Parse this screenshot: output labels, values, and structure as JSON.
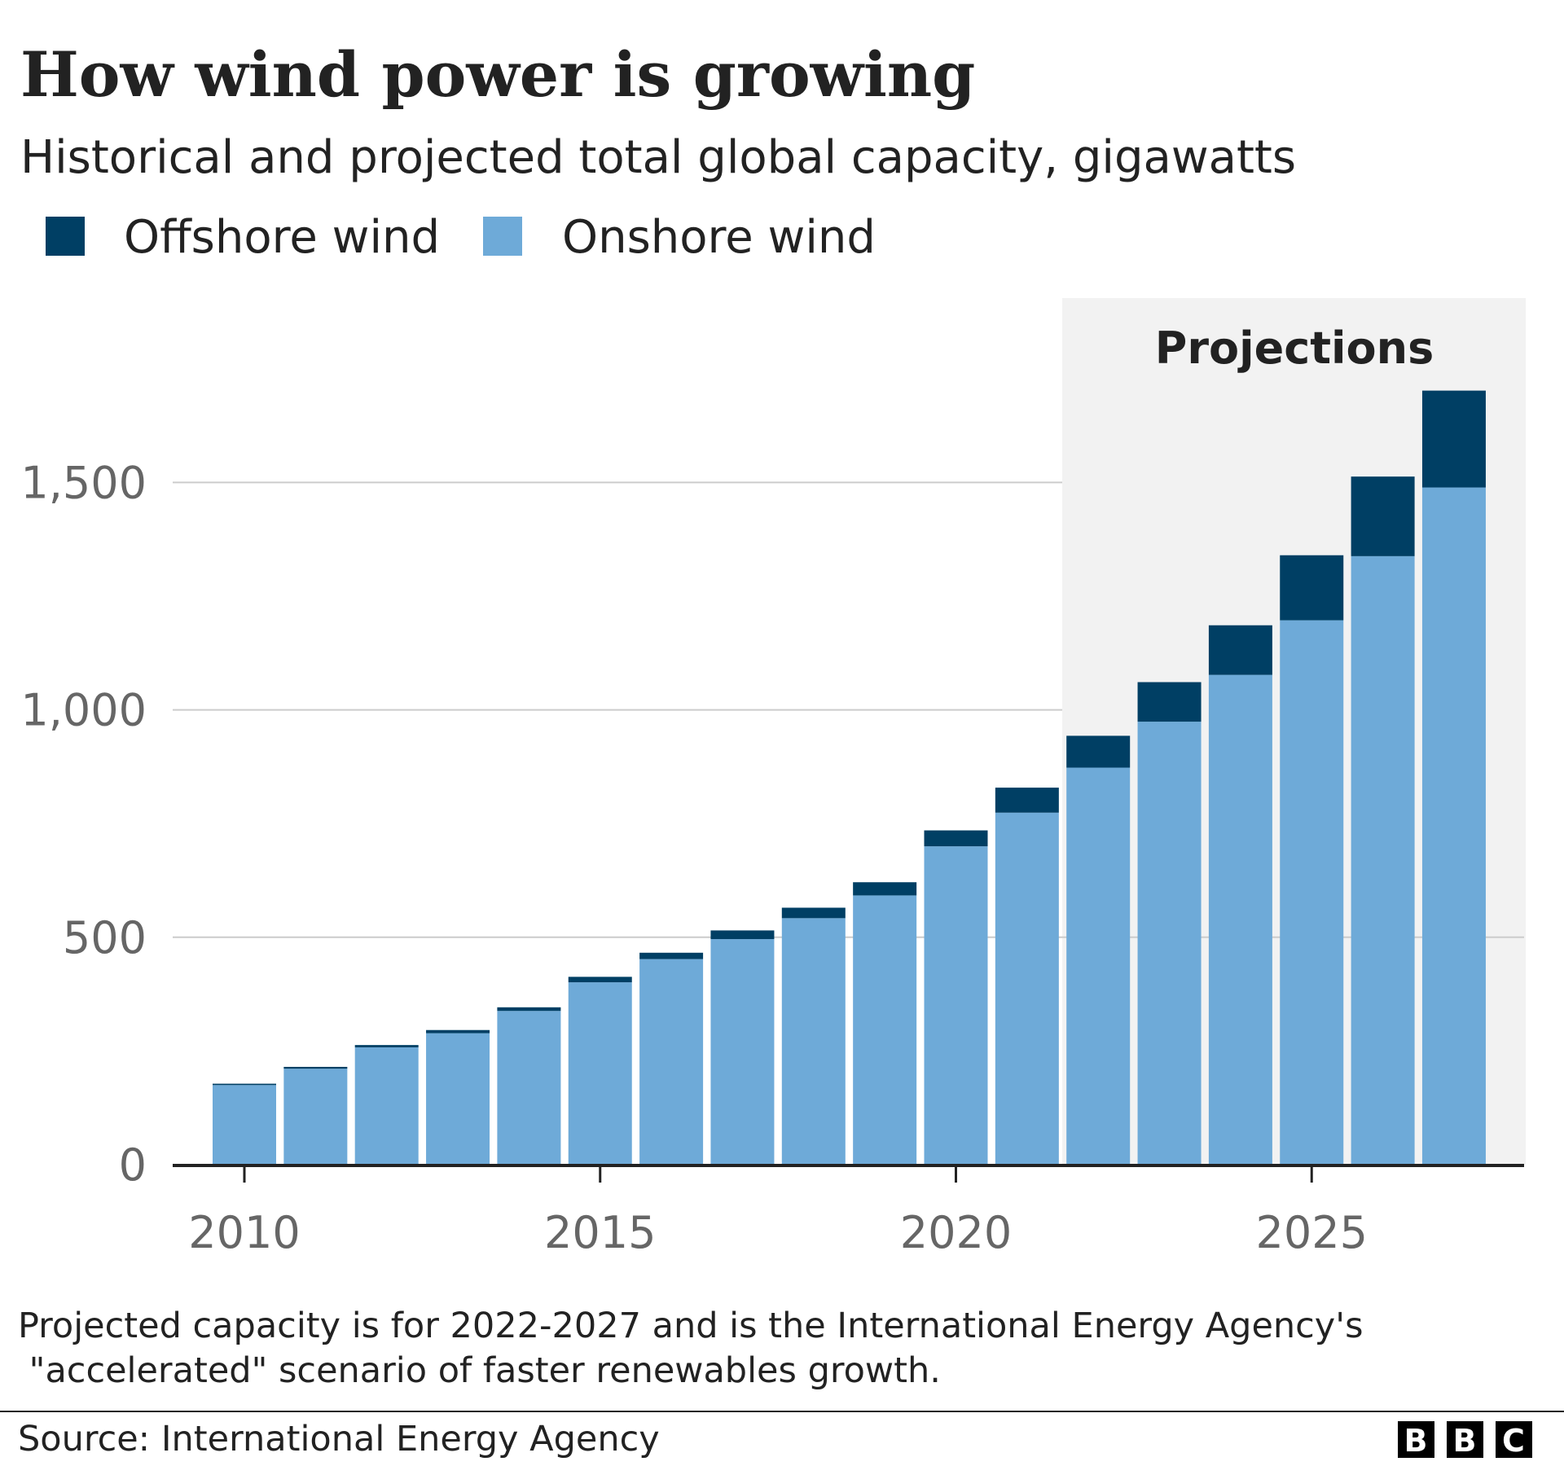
{
  "chart_data": {
    "type": "bar",
    "stacked": true,
    "title": "How wind power is growing",
    "subtitle": "Historical and projected total global capacity, gigawatts",
    "categories": [
      2010,
      2011,
      2012,
      2013,
      2014,
      2015,
      2016,
      2017,
      2018,
      2019,
      2020,
      2021,
      2022,
      2023,
      2024,
      2025,
      2026,
      2027
    ],
    "series": [
      {
        "name": "Onshore wind",
        "color": "#6eaad8",
        "values": [
          175,
          211,
          258,
          289,
          338,
          401,
          452,
          496,
          542,
          592,
          700,
          774,
          873,
          974,
          1077,
          1197,
          1338,
          1489
        ]
      },
      {
        "name": "Offshore wind",
        "color": "#003f64",
        "values": [
          3,
          4,
          5,
          7,
          8,
          12,
          14,
          19,
          23,
          29,
          35,
          55,
          70,
          87,
          109,
          143,
          175,
          213
        ]
      }
    ],
    "legend_order": [
      "Offshore wind",
      "Onshore wind"
    ],
    "legend_position": "top-left",
    "ylim": [
      0,
      1750
    ],
    "y_ticks": [
      0,
      500,
      1000,
      1500
    ],
    "y_tick_labels": [
      "0",
      "500",
      "1,000",
      "1,500"
    ],
    "x_ticks": [
      2010,
      2015,
      2020,
      2025
    ],
    "x_tick_labels": [
      "2010",
      "2015",
      "2020",
      "2025"
    ],
    "grid": "horizontal",
    "projection_region": {
      "label": "Projections",
      "from": 2022,
      "to": 2027,
      "color": "#f2f2f2"
    },
    "note": [
      "Projected capacity is for 2022-2027 and is the International Energy Agency's",
      " \"accelerated\" scenario of faster renewables growth."
    ],
    "source": "Source: International Energy Agency",
    "logo": [
      "B",
      "B",
      "C"
    ]
  }
}
